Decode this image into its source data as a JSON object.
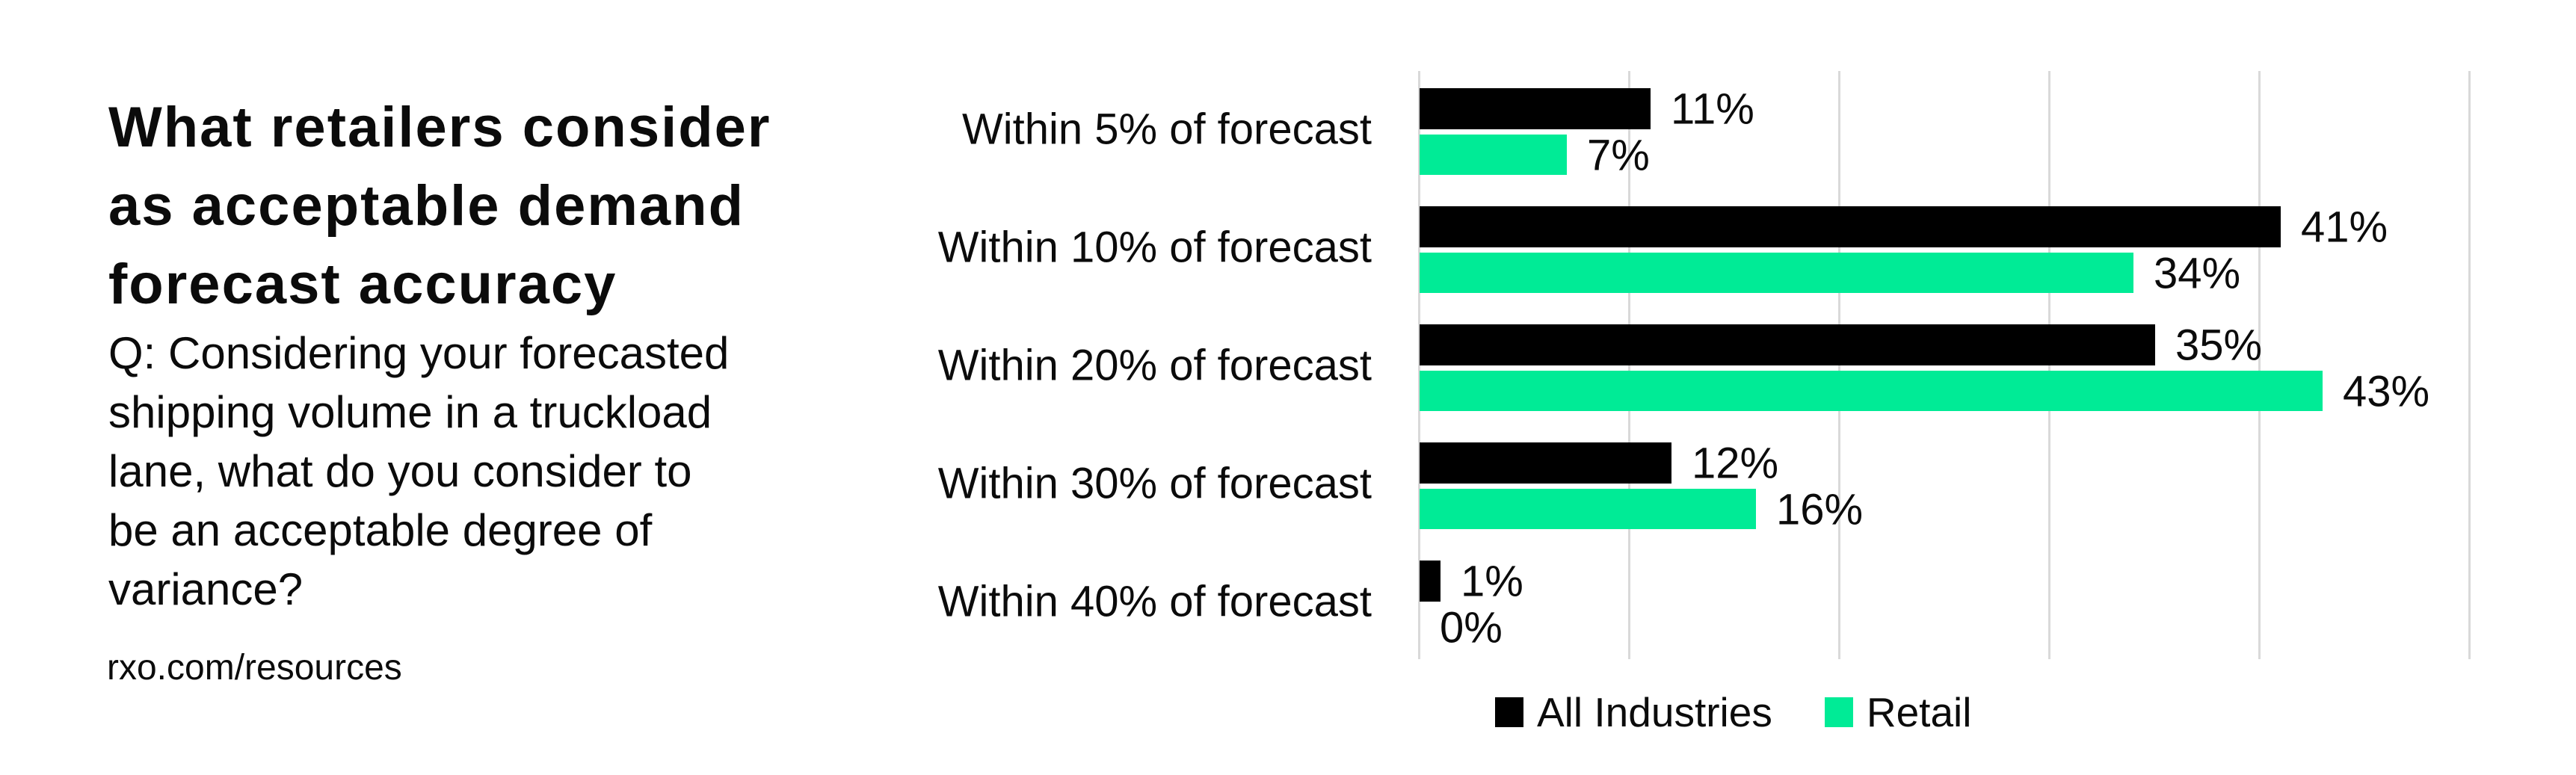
{
  "left_panel": {
    "title_lines": [
      "What retailers consider",
      "as acceptable demand",
      "forecast accuracy"
    ],
    "question_lines": [
      "Q: Considering your forecasted",
      "shipping volume in a truckload",
      "lane, what do you consider to",
      "be an acceptable degree of",
      "variance?"
    ],
    "source": "rxo.com/resources"
  },
  "chart_data": {
    "type": "bar",
    "orientation": "horizontal",
    "title": "What retailers consider as acceptable demand forecast accuracy",
    "categories": [
      "Within 5% of forecast",
      "Within 10% of forecast",
      "Within 20% of forecast",
      "Within 30% of forecast",
      "Within 40% of forecast"
    ],
    "series": [
      {
        "name": "All Industries",
        "color": "#000000",
        "values": [
          11,
          41,
          35,
          12,
          1
        ],
        "value_labels": [
          "11%",
          "41%",
          "35%",
          "12%",
          "1%"
        ]
      },
      {
        "name": "Retail",
        "color": "#00eb96",
        "values": [
          7,
          34,
          43,
          16,
          0
        ],
        "value_labels": [
          "7%",
          "34%",
          "43%",
          "16%",
          "0%"
        ]
      }
    ],
    "value_suffix": "%",
    "xlim": [
      0,
      50
    ],
    "gridline_step": 10,
    "grid": true,
    "gridline_color": "#d9d9d9",
    "legend_position": "bottom",
    "xlabel": "",
    "ylabel": ""
  },
  "colors": {
    "background": "#ffffff",
    "text": "#0b0b0b",
    "accent_green": "#00eb96",
    "gridline": "#d9d9d9"
  }
}
